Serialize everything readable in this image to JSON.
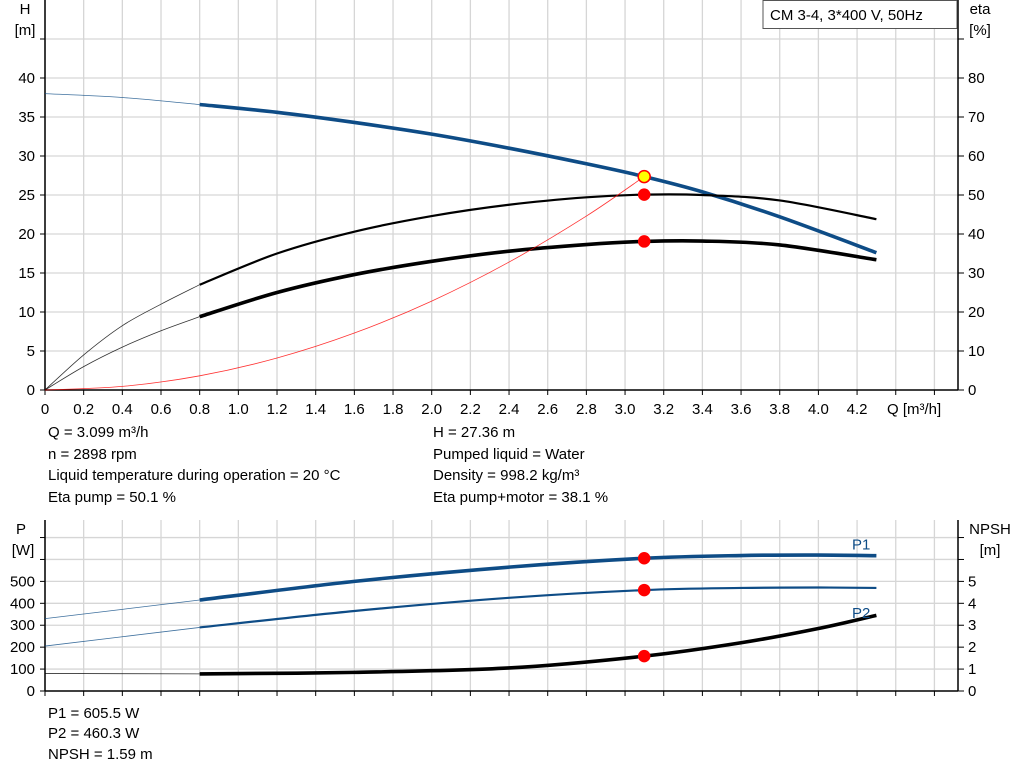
{
  "chart_data": [
    {
      "type": "line",
      "title": "CM 3-4, 3*400 V, 50Hz",
      "xlabel": "Q [m³/h]",
      "ylabel": "H\n[m]",
      "y2label": "eta\n[%]",
      "xlim": [
        0,
        4.72
      ],
      "ylim": [
        0,
        50
      ],
      "y2lim": [
        0,
        100
      ],
      "x_ticks": [
        "0",
        "0.2",
        "0.4",
        "0.6",
        "0.8",
        "1.0",
        "1.2",
        "1.4",
        "1.6",
        "1.8",
        "2.0",
        "2.2",
        "2.4",
        "2.6",
        "2.8",
        "3.0",
        "3.2",
        "3.4",
        "3.6",
        "3.8",
        "4.0",
        "4.2"
      ],
      "y_ticks": [
        "0",
        "5",
        "10",
        "15",
        "20",
        "25",
        "30",
        "35",
        "40"
      ],
      "y2_ticks": [
        "0",
        "10",
        "20",
        "30",
        "40",
        "50",
        "60",
        "70",
        "80"
      ],
      "grid": true,
      "series": [
        {
          "id": "H",
          "axis": "left",
          "color": "#0e4c86",
          "start_thick": 0.8,
          "x": [
            0,
            0.4,
            0.8,
            1.2,
            1.6,
            2.0,
            2.4,
            2.8,
            3.099,
            3.4,
            3.8,
            4.3
          ],
          "y": [
            38,
            37.5,
            36.6,
            35.6,
            34.3,
            32.8,
            31.0,
            29.0,
            27.36,
            25.4,
            22.2,
            17.6
          ]
        },
        {
          "id": "eta-pump",
          "axis": "right",
          "color": "#000000",
          "start_thick": 0.8,
          "x": [
            0,
            0.2,
            0.4,
            0.6,
            0.8,
            1.2,
            1.6,
            2.0,
            2.4,
            2.8,
            3.099,
            3.4,
            3.8,
            4.3
          ],
          "y": [
            0,
            9,
            16.5,
            22,
            27,
            35,
            40.6,
            44.6,
            47.5,
            49.4,
            50.1,
            50.0,
            48.6,
            43.8
          ]
        },
        {
          "id": "eta-pump-motor",
          "axis": "right",
          "color": "#000000",
          "start_thick": 0.8,
          "x": [
            0,
            0.2,
            0.4,
            0.6,
            0.8,
            1.2,
            1.6,
            2.0,
            2.4,
            2.8,
            3.099,
            3.4,
            3.8,
            4.3
          ],
          "y": [
            0,
            6,
            11,
            15.2,
            18.8,
            25,
            29.6,
            33,
            35.6,
            37.3,
            38.1,
            38.2,
            37.2,
            33.4
          ]
        },
        {
          "id": "system-curve",
          "axis": "left",
          "color": "#ff0000",
          "start_thick": 99,
          "x": [
            0,
            0.4,
            0.8,
            1.2,
            1.6,
            2.0,
            2.4,
            2.8,
            3.099
          ],
          "y": [
            0,
            0.46,
            1.82,
            4.1,
            7.3,
            11.4,
            16.4,
            22.3,
            27.36
          ]
        }
      ],
      "markers": [
        {
          "axis": "left",
          "x": 3.099,
          "y": 27.36,
          "fill": "#ffff00",
          "stroke": "#ff0000"
        },
        {
          "axis": "right",
          "x": 3.099,
          "y": 50.1,
          "fill": "#ff0000",
          "stroke": "#ff0000"
        },
        {
          "axis": "right",
          "x": 3.099,
          "y": 38.1,
          "fill": "#ff0000",
          "stroke": "#ff0000"
        }
      ]
    },
    {
      "type": "line",
      "ylabel": "P\n[W]",
      "y2label": "NPSH\n[m]",
      "xlim": [
        0,
        4.72
      ],
      "ylim": [
        0,
        780
      ],
      "y2lim": [
        0,
        7.8
      ],
      "y_ticks": [
        "0",
        "100",
        "200",
        "300",
        "400",
        "500"
      ],
      "y2_ticks": [
        "0",
        "1",
        "2",
        "3",
        "4",
        "5"
      ],
      "grid": true,
      "series": [
        {
          "id": "P1",
          "name": "P1",
          "axis": "left",
          "color": "#0e4c86",
          "start_thick": 0.8,
          "x": [
            0,
            0.8,
            1.6,
            2.4,
            3.099,
            3.6,
            4.0,
            4.3
          ],
          "y": [
            330,
            415,
            500,
            565,
            605.5,
            618,
            620,
            617
          ]
        },
        {
          "id": "P2",
          "name": "P2",
          "axis": "left",
          "color": "#0e4c86",
          "start_thick": 0.8,
          "x": [
            0,
            0.8,
            1.6,
            2.4,
            3.099,
            3.6,
            4.0,
            4.3
          ],
          "y": [
            205,
            290,
            365,
            425,
            460.3,
            470,
            472,
            470
          ]
        },
        {
          "id": "NPSH",
          "axis": "right",
          "color": "#000000",
          "start_thick": 0.8,
          "x": [
            0,
            0.8,
            1.6,
            2.4,
            3.099,
            3.6,
            4.0,
            4.3
          ],
          "y": [
            0.8,
            0.78,
            0.85,
            1.05,
            1.59,
            2.2,
            2.85,
            3.45
          ]
        }
      ],
      "markers": [
        {
          "axis": "left",
          "x": 3.099,
          "y": 605.5,
          "fill": "#ff0000",
          "stroke": "#ff0000"
        },
        {
          "axis": "left",
          "x": 3.099,
          "y": 460.3,
          "fill": "#ff0000",
          "stroke": "#ff0000"
        },
        {
          "axis": "right",
          "x": 3.099,
          "y": 1.59,
          "fill": "#ff0000",
          "stroke": "#ff0000"
        }
      ]
    }
  ],
  "info_top": {
    "q": "Q = 3.099 m³/h",
    "n": "n = 2898 rpm",
    "temp": "Liquid temperature during operation = 20 °C",
    "eta_pump": "Eta pump = 50.1 %",
    "h": "H = 27.36 m",
    "liquid": "Pumped liquid = Water",
    "density": "Density = 998.2 kg/m³",
    "eta_total": "Eta pump+motor = 38.1 %"
  },
  "info_bottom": {
    "p1": "P1 = 605.5 W",
    "p2": "P2 = 460.3 W",
    "npsh": "NPSH = 1.59 m"
  }
}
